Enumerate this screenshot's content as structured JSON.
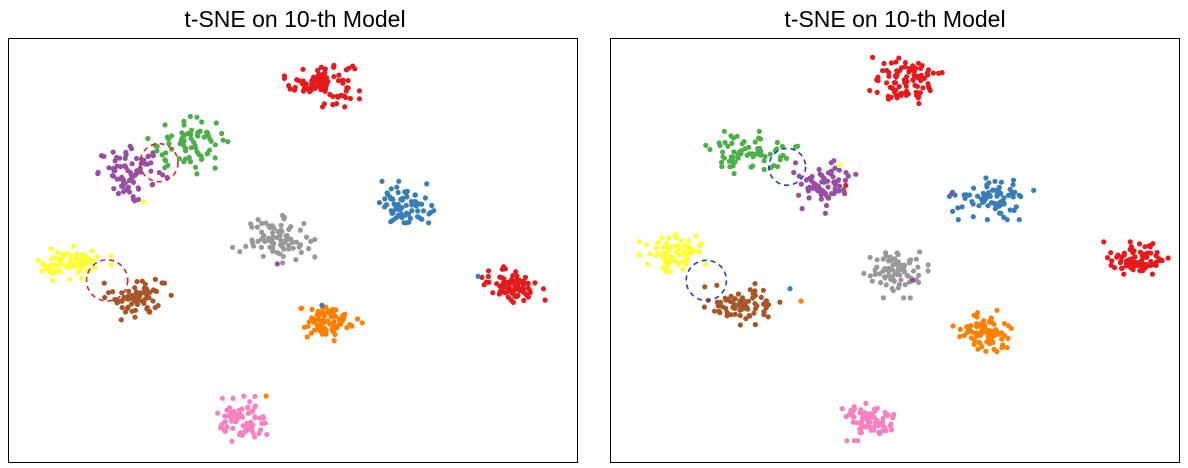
{
  "colors": {
    "red": "#e41a1c",
    "blue": "#377eb8",
    "green": "#4daf4a",
    "purple": "#984ea3",
    "orange": "#ff7f00",
    "yellow": "#ffff33",
    "brown": "#a65628",
    "pink": "#f781bf",
    "gray": "#999999",
    "circle_red": "#d62728",
    "circle_blue": "#1f3fbf"
  },
  "chart_data": [
    {
      "type": "scatter",
      "title": "t-SNE on 10-th Model",
      "xlabel": "",
      "ylabel": "",
      "axes_ticks": false,
      "grid": false,
      "clusters": [
        {
          "color": "red",
          "cx": 0.55,
          "cy": 0.91,
          "sx": 0.028,
          "sy": 0.025,
          "n": 90
        },
        {
          "color": "green",
          "cx": 0.31,
          "cy": 0.76,
          "sx": 0.035,
          "sy": 0.03,
          "n": 70
        },
        {
          "color": "purple",
          "cx": 0.21,
          "cy": 0.69,
          "sx": 0.03,
          "sy": 0.028,
          "n": 75
        },
        {
          "color": "blue",
          "cx": 0.7,
          "cy": 0.61,
          "sx": 0.022,
          "sy": 0.025,
          "n": 75
        },
        {
          "color": "gray",
          "cx": 0.47,
          "cy": 0.53,
          "sx": 0.028,
          "sy": 0.024,
          "n": 80
        },
        {
          "color": "yellow",
          "cx": 0.1,
          "cy": 0.47,
          "sx": 0.03,
          "sy": 0.018,
          "n": 70
        },
        {
          "color": "brown",
          "cx": 0.22,
          "cy": 0.39,
          "sx": 0.025,
          "sy": 0.025,
          "n": 70
        },
        {
          "color": "red",
          "cx": 0.89,
          "cy": 0.42,
          "sx": 0.025,
          "sy": 0.018,
          "n": 80
        },
        {
          "color": "orange",
          "cx": 0.56,
          "cy": 0.33,
          "sx": 0.026,
          "sy": 0.022,
          "n": 80
        },
        {
          "color": "pink",
          "cx": 0.41,
          "cy": 0.09,
          "sx": 0.022,
          "sy": 0.025,
          "n": 75
        }
      ],
      "stray_points": [
        {
          "color": "gray",
          "x": 0.39,
          "y": 0.51
        },
        {
          "color": "purple",
          "x": 0.47,
          "y": 0.47
        },
        {
          "color": "yellow",
          "x": 0.23,
          "y": 0.62
        },
        {
          "color": "green",
          "x": 0.27,
          "y": 0.72
        },
        {
          "color": "blue",
          "x": 0.83,
          "y": 0.44
        },
        {
          "color": "blue",
          "x": 0.55,
          "y": 0.37
        },
        {
          "color": "orange",
          "x": 0.45,
          "y": 0.15
        }
      ],
      "highlight_circles": [
        {
          "color": "circle_red",
          "x": 0.258,
          "y": 0.715,
          "r": 0.034
        },
        {
          "color": "circle_red",
          "x": 0.165,
          "y": 0.43,
          "r": 0.037
        }
      ]
    },
    {
      "type": "scatter",
      "title": "t-SNE on 10-th Model",
      "xlabel": "",
      "ylabel": "",
      "axes_ticks": false,
      "grid": false,
      "clusters": [
        {
          "color": "red",
          "cx": 0.52,
          "cy": 0.91,
          "sx": 0.028,
          "sy": 0.025,
          "n": 90
        },
        {
          "color": "green",
          "cx": 0.24,
          "cy": 0.74,
          "sx": 0.035,
          "sy": 0.022,
          "n": 70
        },
        {
          "color": "purple",
          "cx": 0.37,
          "cy": 0.66,
          "sx": 0.025,
          "sy": 0.03,
          "n": 75
        },
        {
          "color": "blue",
          "cx": 0.67,
          "cy": 0.63,
          "sx": 0.032,
          "sy": 0.022,
          "n": 80
        },
        {
          "color": "gray",
          "cx": 0.5,
          "cy": 0.45,
          "sx": 0.024,
          "sy": 0.026,
          "n": 80
        },
        {
          "color": "yellow",
          "cx": 0.1,
          "cy": 0.49,
          "sx": 0.025,
          "sy": 0.025,
          "n": 70
        },
        {
          "color": "brown",
          "cx": 0.22,
          "cy": 0.37,
          "sx": 0.03,
          "sy": 0.022,
          "n": 70
        },
        {
          "color": "red",
          "cx": 0.93,
          "cy": 0.48,
          "sx": 0.024,
          "sy": 0.018,
          "n": 80
        },
        {
          "color": "orange",
          "cx": 0.66,
          "cy": 0.3,
          "sx": 0.024,
          "sy": 0.024,
          "n": 80
        },
        {
          "color": "pink",
          "cx": 0.45,
          "cy": 0.09,
          "sx": 0.022,
          "sy": 0.02,
          "n": 75
        }
      ],
      "stray_points": [
        {
          "color": "purple",
          "x": 0.6,
          "y": 0.64
        },
        {
          "color": "blue",
          "x": 0.31,
          "y": 0.41
        },
        {
          "color": "yellow",
          "x": 0.4,
          "y": 0.71
        },
        {
          "color": "red",
          "x": 0.41,
          "y": 0.66
        },
        {
          "color": "purple",
          "x": 0.53,
          "y": 0.43
        },
        {
          "color": "orange",
          "x": 0.33,
          "y": 0.38
        }
      ],
      "highlight_circles": [
        {
          "color": "circle_blue",
          "x": 0.305,
          "y": 0.705,
          "r": 0.033
        },
        {
          "color": "circle_blue",
          "x": 0.16,
          "y": 0.43,
          "r": 0.036
        }
      ]
    }
  ]
}
